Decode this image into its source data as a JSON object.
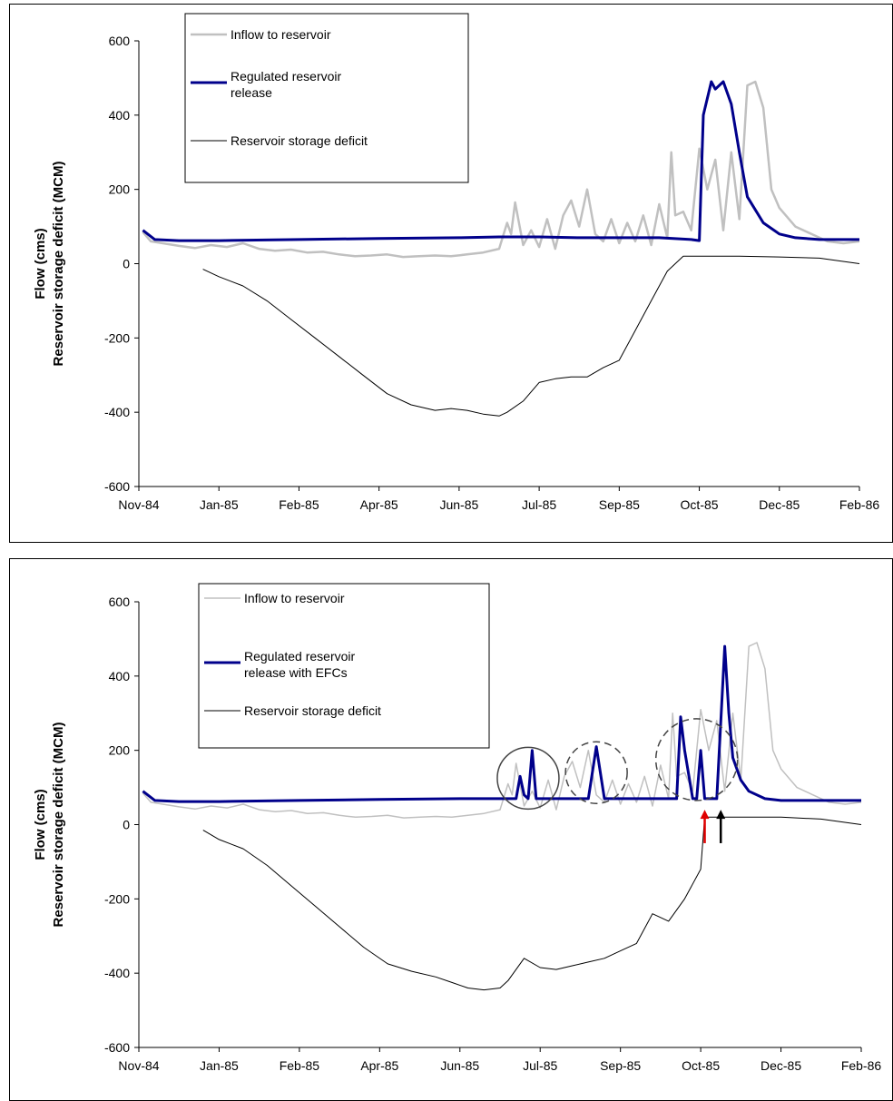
{
  "chart_data": [
    {
      "type": "line",
      "title": "",
      "xlabel": "",
      "ylabel_line1": "Flow (cms)",
      "ylabel_line2": "Reservoir storage deficit (MCM)",
      "ylim": [
        -600,
        600
      ],
      "yticks": [
        600,
        400,
        200,
        0,
        -200,
        -400,
        -600
      ],
      "xticks": [
        "Nov-84",
        "Jan-85",
        "Feb-85",
        "Apr-85",
        "Jun-85",
        "Jul-85",
        "Sep-85",
        "Oct-85",
        "Dec-85",
        "Feb-86"
      ],
      "legend_position": "top-left",
      "series": [
        {
          "name": "Inflow to reservoir",
          "color": "#c0c0c0",
          "x": [
            0.05,
            0.15,
            0.3,
            0.5,
            0.7,
            0.9,
            1.1,
            1.3,
            1.5,
            1.7,
            1.9,
            2.1,
            2.3,
            2.5,
            2.7,
            2.9,
            3.1,
            3.3,
            3.5,
            3.7,
            3.9,
            4.1,
            4.3,
            4.5,
            4.6,
            4.65,
            4.7,
            4.8,
            4.9,
            5.0,
            5.1,
            5.2,
            5.3,
            5.4,
            5.5,
            5.6,
            5.7,
            5.8,
            5.9,
            6.0,
            6.1,
            6.2,
            6.3,
            6.4,
            6.5,
            6.6,
            6.65,
            6.7,
            6.8,
            6.9,
            7.0,
            7.1,
            7.2,
            7.3,
            7.4,
            7.5,
            7.6,
            7.7,
            7.8,
            7.9,
            8.0,
            8.2,
            8.4,
            8.6,
            8.8,
            9.0
          ],
          "y": [
            85,
            60,
            55,
            48,
            42,
            50,
            45,
            55,
            40,
            35,
            38,
            30,
            32,
            25,
            20,
            22,
            25,
            18,
            20,
            22,
            20,
            25,
            30,
            40,
            110,
            80,
            165,
            50,
            90,
            45,
            120,
            40,
            130,
            170,
            100,
            200,
            80,
            60,
            120,
            55,
            110,
            60,
            130,
            50,
            160,
            70,
            300,
            130,
            140,
            90,
            310,
            200,
            280,
            90,
            300,
            120,
            480,
            490,
            420,
            200,
            150,
            100,
            80,
            60,
            55,
            60
          ],
          "markers": false
        },
        {
          "name": "Regulated reservoir release",
          "color": "#00008b",
          "x": [
            0.05,
            0.2,
            0.5,
            1.0,
            2.0,
            3.0,
            4.0,
            4.5,
            5.0,
            5.5,
            6.0,
            6.5,
            6.9,
            7.0,
            7.05,
            7.15,
            7.2,
            7.3,
            7.4,
            7.5,
            7.6,
            7.8,
            8.0,
            8.2,
            8.5,
            9.0
          ],
          "y": [
            90,
            65,
            62,
            62,
            65,
            68,
            70,
            72,
            72,
            70,
            70,
            70,
            65,
            62,
            400,
            490,
            470,
            490,
            430,
            300,
            180,
            110,
            80,
            70,
            65,
            65
          ],
          "markers": false
        },
        {
          "name": "Reservoir storage deficit",
          "color": "#000000",
          "x": [
            0.8,
            1.0,
            1.3,
            1.6,
            1.9,
            2.2,
            2.5,
            2.8,
            3.1,
            3.4,
            3.7,
            3.9,
            4.1,
            4.3,
            4.5,
            4.6,
            4.8,
            5.0,
            5.2,
            5.4,
            5.6,
            5.8,
            6.0,
            6.2,
            6.4,
            6.6,
            6.8,
            7.0,
            7.2,
            7.5,
            8.0,
            8.5,
            9.0
          ],
          "y": [
            -15,
            -35,
            -60,
            -100,
            -150,
            -200,
            -250,
            -300,
            -350,
            -380,
            -395,
            -390,
            -395,
            -405,
            -410,
            -400,
            -370,
            -320,
            -310,
            -305,
            -305,
            -280,
            -260,
            -180,
            -100,
            -20,
            20,
            20,
            20,
            20,
            18,
            15,
            0
          ],
          "markers": false
        }
      ]
    },
    {
      "type": "line",
      "title": "",
      "xlabel": "",
      "ylabel_line1": "Flow (cms)",
      "ylabel_line2": "Reservoir storage deficit (MCM)",
      "ylim": [
        -600,
        600
      ],
      "yticks": [
        600,
        400,
        200,
        0,
        -200,
        -400,
        -600
      ],
      "xticks": [
        "Nov-84",
        "Jan-85",
        "Feb-85",
        "Apr-85",
        "Jun-85",
        "Jul-85",
        "Sep-85",
        "Oct-85",
        "Dec-85",
        "Feb-86"
      ],
      "legend_position": "top-left",
      "series": [
        {
          "name": "Inflow to reservoir",
          "color": "#c0c0c0",
          "x": [
            0.05,
            0.15,
            0.3,
            0.5,
            0.7,
            0.9,
            1.1,
            1.3,
            1.5,
            1.7,
            1.9,
            2.1,
            2.3,
            2.5,
            2.7,
            2.9,
            3.1,
            3.3,
            3.5,
            3.7,
            3.9,
            4.1,
            4.3,
            4.5,
            4.6,
            4.65,
            4.7,
            4.8,
            4.9,
            5.0,
            5.1,
            5.2,
            5.3,
            5.4,
            5.5,
            5.6,
            5.7,
            5.8,
            5.9,
            6.0,
            6.1,
            6.2,
            6.3,
            6.4,
            6.5,
            6.6,
            6.65,
            6.7,
            6.8,
            6.9,
            7.0,
            7.1,
            7.2,
            7.3,
            7.4,
            7.5,
            7.6,
            7.7,
            7.8,
            7.9,
            8.0,
            8.2,
            8.4,
            8.6,
            8.8,
            9.0
          ],
          "y": [
            85,
            60,
            55,
            48,
            42,
            50,
            45,
            55,
            40,
            35,
            38,
            30,
            32,
            25,
            20,
            22,
            25,
            18,
            20,
            22,
            20,
            25,
            30,
            40,
            110,
            80,
            165,
            50,
            90,
            45,
            120,
            40,
            130,
            170,
            100,
            200,
            80,
            60,
            120,
            55,
            110,
            60,
            130,
            50,
            160,
            70,
            300,
            130,
            140,
            90,
            310,
            200,
            280,
            90,
            300,
            120,
            480,
            490,
            420,
            200,
            150,
            100,
            80,
            60,
            55,
            60
          ],
          "markers": false
        },
        {
          "name": "Regulated reservoir release with EFCs",
          "color": "#00008b",
          "x": [
            0.05,
            0.2,
            0.5,
            1.0,
            2.0,
            3.0,
            4.0,
            4.5,
            4.7,
            4.75,
            4.8,
            4.85,
            4.9,
            4.95,
            5.0,
            5.1,
            5.5,
            5.6,
            5.7,
            5.8,
            5.9,
            6.0,
            6.5,
            6.7,
            6.75,
            6.8,
            6.9,
            6.95,
            7.0,
            7.05,
            7.1,
            7.15,
            7.2,
            7.3,
            7.35,
            7.4,
            7.5,
            7.6,
            7.8,
            8.0,
            8.2,
            8.5,
            9.0
          ],
          "y": [
            90,
            65,
            62,
            62,
            65,
            68,
            70,
            70,
            70,
            130,
            80,
            70,
            200,
            70,
            70,
            70,
            70,
            70,
            210,
            70,
            70,
            70,
            70,
            70,
            290,
            200,
            70,
            70,
            200,
            70,
            70,
            70,
            70,
            480,
            300,
            180,
            120,
            90,
            70,
            65,
            65,
            65,
            65
          ],
          "markers": false
        },
        {
          "name": "Reservoir storage deficit",
          "color": "#000000",
          "x": [
            0.8,
            1.0,
            1.3,
            1.6,
            1.9,
            2.2,
            2.5,
            2.8,
            3.1,
            3.4,
            3.7,
            3.9,
            4.1,
            4.3,
            4.5,
            4.6,
            4.8,
            5.0,
            5.2,
            5.4,
            5.6,
            5.8,
            6.0,
            6.2,
            6.4,
            6.6,
            6.8,
            7.0,
            7.05,
            7.2,
            7.5,
            8.0,
            8.5,
            9.0
          ],
          "y": [
            -15,
            -40,
            -65,
            -110,
            -165,
            -220,
            -275,
            -330,
            -375,
            -395,
            -410,
            -425,
            -440,
            -445,
            -440,
            -420,
            -360,
            -385,
            -390,
            -380,
            -370,
            -360,
            -340,
            -320,
            -240,
            -260,
            -200,
            -120,
            20,
            20,
            20,
            20,
            15,
            0
          ],
          "markers": false
        }
      ]
    }
  ]
}
